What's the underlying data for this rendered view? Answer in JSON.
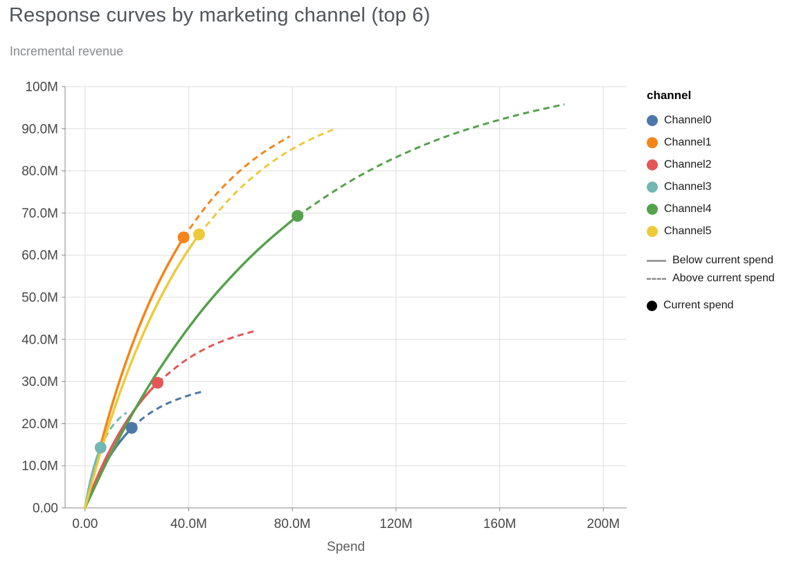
{
  "chart_data": {
    "type": "line",
    "title": "Response curves by marketing channel (top 6)",
    "subtitle": "Incremental revenue",
    "xlabel": "Spend",
    "ylabel": "Incremental revenue",
    "x_unit": "millions",
    "y_unit": "millions",
    "x_domain": [
      -7.7,
      209
    ],
    "y_domain": [
      0,
      100
    ],
    "grid": true,
    "legend_position": "right",
    "x_ticks": [
      {
        "value": 0,
        "label": "0.00"
      },
      {
        "value": 40,
        "label": "40.0M"
      },
      {
        "value": 80,
        "label": "80.0M"
      },
      {
        "value": 120,
        "label": "120M"
      },
      {
        "value": 160,
        "label": "160M"
      },
      {
        "value": 200,
        "label": "200M"
      }
    ],
    "y_ticks": [
      {
        "value": 0,
        "label": "0.00"
      },
      {
        "value": 10,
        "label": "10.0M"
      },
      {
        "value": 20,
        "label": "20.0M"
      },
      {
        "value": 30,
        "label": "30.0M"
      },
      {
        "value": 40,
        "label": "40.0M"
      },
      {
        "value": 50,
        "label": "50.0M"
      },
      {
        "value": 60,
        "label": "60.0M"
      },
      {
        "value": 70,
        "label": "70.0M"
      },
      {
        "value": 80,
        "label": "80.0M"
      },
      {
        "value": 90,
        "label": "90.0M"
      },
      {
        "value": 100,
        "label": "100M"
      }
    ],
    "legend": {
      "title": "channel",
      "line_styles": [
        {
          "style": "solid",
          "label": "Below current spend"
        },
        {
          "style": "dashed",
          "label": "Above current spend"
        }
      ],
      "point": {
        "label": "Current spend",
        "color": "#000000"
      }
    },
    "series": [
      {
        "name": "Channel0",
        "color": "#4c78a8",
        "current_spend": [
          18,
          19.0
        ],
        "solid": [
          [
            0,
            0
          ],
          [
            2,
            3.2
          ],
          [
            4,
            6.0
          ],
          [
            6,
            8.5
          ],
          [
            9,
            11.8
          ],
          [
            12,
            14.6
          ],
          [
            15,
            16.9
          ],
          [
            18,
            19.0
          ]
        ],
        "dashed": [
          [
            18,
            19.0
          ],
          [
            22,
            21.2
          ],
          [
            26,
            22.9
          ],
          [
            30,
            24.3
          ],
          [
            34,
            25.4
          ],
          [
            38,
            26.3
          ],
          [
            42,
            27.1
          ],
          [
            46,
            27.7
          ]
        ]
      },
      {
        "name": "Channel1",
        "color": "#f58518",
        "current_spend": [
          38,
          64.2
        ],
        "solid": [
          [
            0,
            0
          ],
          [
            4,
            10.2
          ],
          [
            8,
            19.4
          ],
          [
            12,
            27.7
          ],
          [
            16,
            35.1
          ],
          [
            21,
            43.3
          ],
          [
            26,
            50.5
          ],
          [
            32,
            57.9
          ],
          [
            38,
            64.2
          ]
        ],
        "dashed": [
          [
            38,
            64.2
          ],
          [
            45,
            70.4
          ],
          [
            52,
            75.5
          ],
          [
            59,
            79.7
          ],
          [
            66,
            83.2
          ],
          [
            72,
            85.7
          ],
          [
            79,
            88.2
          ]
        ]
      },
      {
        "name": "Channel2",
        "color": "#e45756",
        "current_spend": [
          28,
          29.7
        ],
        "solid": [
          [
            0,
            0
          ],
          [
            3,
            4.8
          ],
          [
            6,
            9.2
          ],
          [
            9,
            13.0
          ],
          [
            13,
            17.6
          ],
          [
            17,
            21.5
          ],
          [
            21,
            24.9
          ],
          [
            25,
            27.8
          ],
          [
            28,
            29.7
          ]
        ],
        "dashed": [
          [
            28,
            29.7
          ],
          [
            34,
            32.9
          ],
          [
            40,
            35.6
          ],
          [
            46,
            37.7
          ],
          [
            52,
            39.4
          ],
          [
            59,
            40.9
          ],
          [
            65,
            41.9
          ]
        ]
      },
      {
        "name": "Channel3",
        "color": "#72b7b2",
        "current_spend": [
          6,
          14.3
        ],
        "solid": [
          [
            0,
            0
          ],
          [
            1,
            3.3
          ],
          [
            2,
            6.2
          ],
          [
            3,
            8.7
          ],
          [
            4,
            10.9
          ],
          [
            5,
            12.7
          ],
          [
            6,
            14.3
          ]
        ],
        "dashed": [
          [
            6,
            14.3
          ],
          [
            8,
            17.0
          ],
          [
            10,
            19.0
          ],
          [
            12,
            20.5
          ],
          [
            14,
            21.7
          ],
          [
            16,
            22.6
          ]
        ]
      },
      {
        "name": "Channel4",
        "color": "#54a24b",
        "current_spend": [
          82,
          69.3
        ],
        "solid": [
          [
            0,
            0
          ],
          [
            6,
            8.0
          ],
          [
            12,
            15.3
          ],
          [
            20,
            24.3
          ],
          [
            28,
            32.4
          ],
          [
            38,
            41.3
          ],
          [
            48,
            49.2
          ],
          [
            60,
            57.3
          ],
          [
            70,
            63.2
          ],
          [
            82,
            69.3
          ]
        ],
        "dashed": [
          [
            82,
            69.3
          ],
          [
            95,
            74.9
          ],
          [
            110,
            80.3
          ],
          [
            125,
            84.7
          ],
          [
            140,
            88.4
          ],
          [
            155,
            91.3
          ],
          [
            170,
            93.8
          ],
          [
            185,
            95.8
          ]
        ]
      },
      {
        "name": "Channel5",
        "color": "#eeca3b",
        "current_spend": [
          44,
          64.9
        ],
        "solid": [
          [
            0,
            0
          ],
          [
            4,
            9.1
          ],
          [
            8,
            17.4
          ],
          [
            12,
            24.9
          ],
          [
            17,
            33.3
          ],
          [
            22,
            40.8
          ],
          [
            28,
            48.7
          ],
          [
            34,
            55.5
          ],
          [
            39,
            60.5
          ],
          [
            44,
            64.9
          ]
        ],
        "dashed": [
          [
            44,
            64.9
          ],
          [
            53,
            71.7
          ],
          [
            62,
            77.2
          ],
          [
            71,
            81.7
          ],
          [
            80,
            85.3
          ],
          [
            89,
            88.1
          ],
          [
            97,
            90.1
          ]
        ]
      }
    ],
    "style": {
      "grid_color": "#dddddd",
      "axis_line_color": "#888888",
      "tick_label_color": "#474747",
      "axis_title_color": "#5c5c5c",
      "legend_line_sample_color": "#9d9d9d",
      "solid_width": 3.5,
      "dashed_width": 3,
      "point_radius": 8.5
    }
  }
}
